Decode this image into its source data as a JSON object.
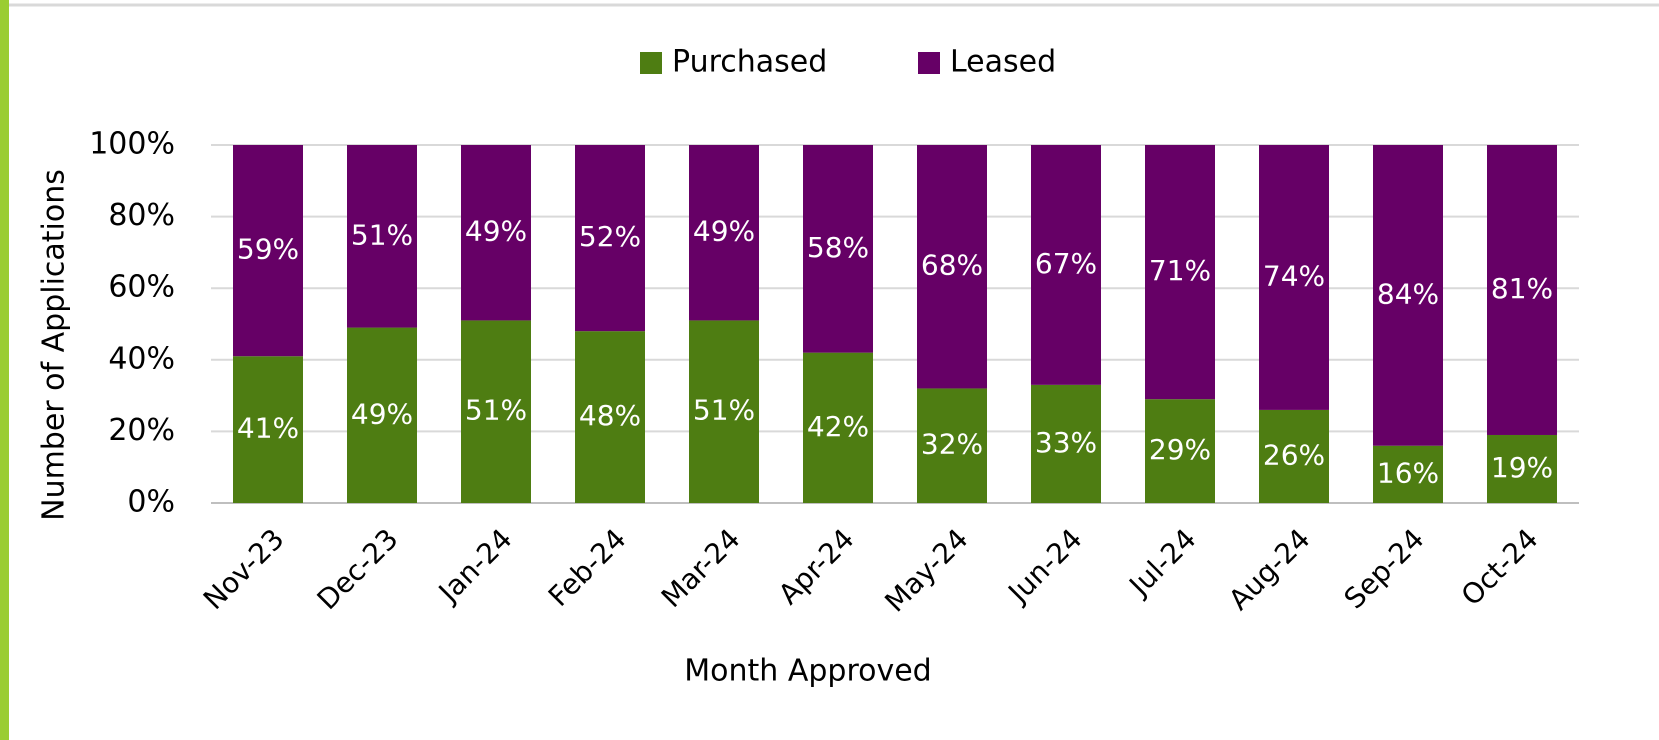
{
  "chart_data": {
    "type": "stacked_bar",
    "x_label": "Month Approved",
    "y_label": "Number of Applications",
    "categories": [
      "Nov-23",
      "Dec-23",
      "Jan-24",
      "Feb-24",
      "Mar-24",
      "Apr-24",
      "May-24",
      "Jun-24",
      "Jul-24",
      "Aug-24",
      "Sep-24",
      "Oct-24"
    ],
    "series": [
      {
        "name": "Purchased",
        "color": "#4e7d12",
        "values": [
          41,
          49,
          51,
          48,
          51,
          42,
          32,
          33,
          29,
          26,
          16,
          19
        ],
        "value_labels": [
          "41%",
          "49%",
          "51%",
          "48%",
          "51%",
          "42%",
          "32%",
          "33%",
          "29%",
          "26%",
          "16%",
          "19%"
        ]
      },
      {
        "name": "Leased",
        "color": "#660066",
        "values": [
          59,
          51,
          49,
          52,
          49,
          58,
          68,
          67,
          71,
          74,
          84,
          81
        ],
        "value_labels": [
          "59%",
          "51%",
          "49%",
          "52%",
          "49%",
          "58%",
          "68%",
          "67%",
          "71%",
          "74%",
          "84%",
          "81%"
        ]
      }
    ],
    "ylim": [
      0,
      100
    ],
    "yticks": [
      {
        "value": 0,
        "label": "0%"
      },
      {
        "value": 20,
        "label": "20%"
      },
      {
        "value": 40,
        "label": "40%"
      },
      {
        "value": 60,
        "label": "60%"
      },
      {
        "value": 80,
        "label": "80%"
      },
      {
        "value": 100,
        "label": "100%"
      }
    ],
    "grid": true,
    "legend": "top"
  }
}
